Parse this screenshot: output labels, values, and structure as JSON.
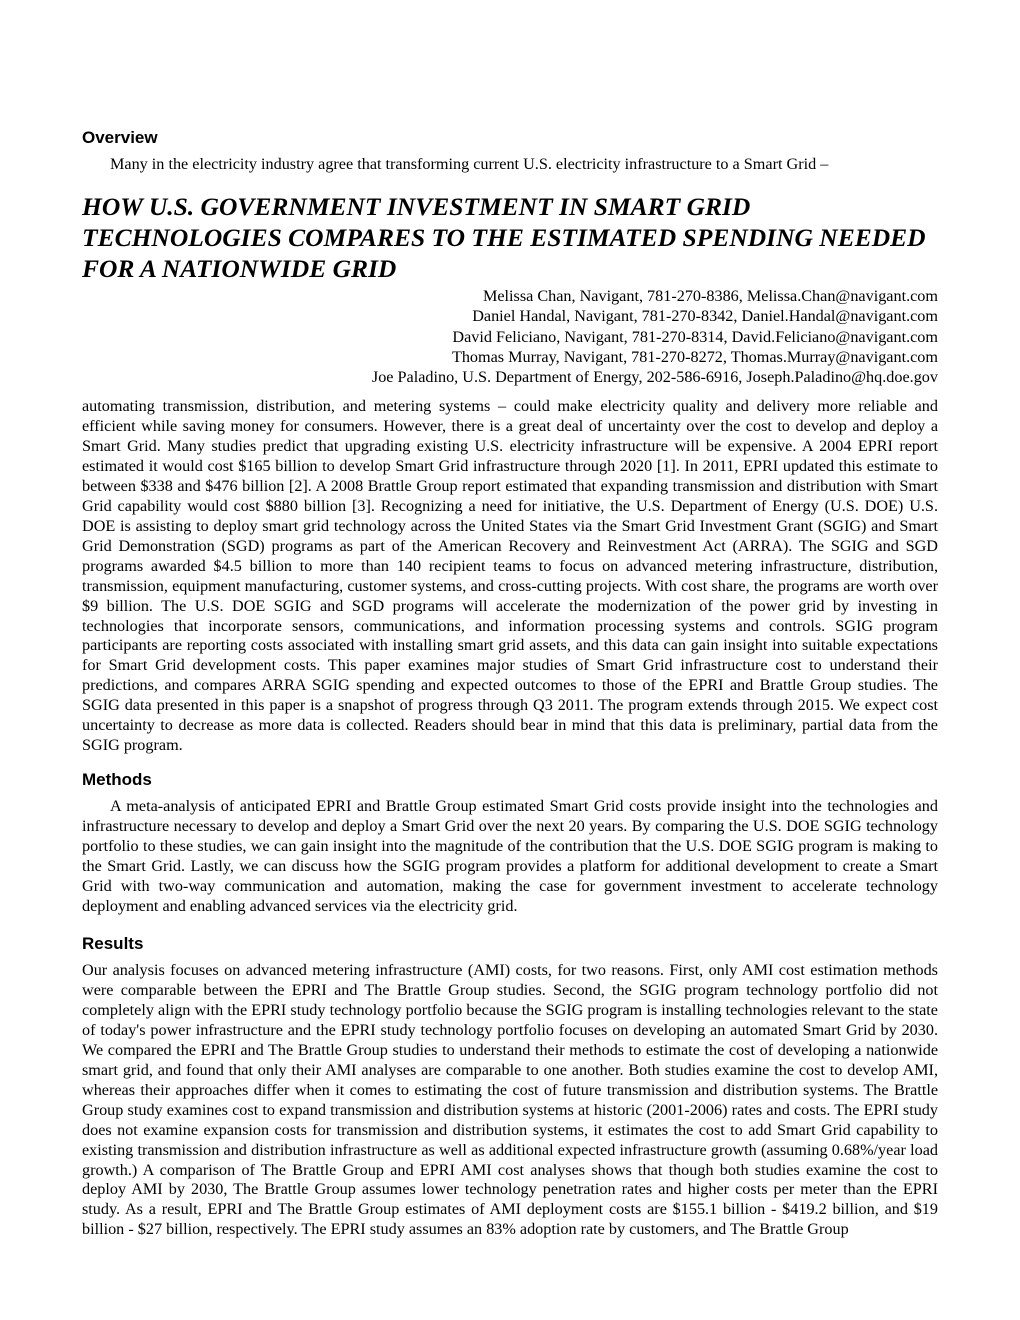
{
  "overview": {
    "heading": "Overview",
    "intro": "Many in the electricity industry agree that transforming current U.S. electricity infrastructure to a Smart Grid –"
  },
  "title": "HOW U.S. GOVERNMENT INVESTMENT IN SMART GRID TECHNOLOGIES COMPARES TO THE ESTIMATED SPENDING NEEDED FOR A NATIONWIDE GRID",
  "authors": [
    "Melissa Chan, Navigant, 781-270-8386, Melissa.Chan@navigant.com",
    "Daniel Handal, Navigant, 781-270-8342, Daniel.Handal@navigant.com",
    "David Feliciano, Navigant, 781-270-8314, David.Feliciano@navigant.com",
    "Thomas Murray, Navigant, 781-270-8272, Thomas.Murray@navigant.com",
    "Joe Paladino, U.S. Department of Energy, 202-586-6916, Joseph.Paladino@hq.doe.gov"
  ],
  "body_main": "automating transmission, distribution, and metering systems – could make electricity quality and delivery more reliable and efficient while saving money for consumers.  However, there is a great deal of uncertainty over the cost to develop and deploy a Smart Grid.  Many studies predict that upgrading existing U.S. electricity infrastructure will be expensive.  A 2004 EPRI report estimated it would cost $165 billion to develop Smart Grid infrastructure through 2020 [1].  In 2011, EPRI updated this estimate to between $338 and $476 billion [2]. A 2008 Brattle Group report estimated that expanding transmission and distribution with Smart Grid capability would cost $880 billion [3]. Recognizing a need for initiative, the U.S. Department of Energy (U.S. DOE) U.S. DOE is assisting to deploy smart grid technology across the United States via the Smart Grid Investment Grant (SGIG) and Smart Grid Demonstration (SGD) programs as part of the American Recovery and Reinvestment Act (ARRA). The SGIG and SGD programs awarded $4.5 billion to more than 140 recipient teams to focus on advanced metering infrastructure, distribution, transmission, equipment manufacturing, customer systems, and cross-cutting projects.  With cost share, the programs are worth over $9 billion. The U.S. DOE SGIG and SGD programs will accelerate the modernization of the power grid by investing in technologies that incorporate sensors, communications, and information processing systems and controls.  SGIG program participants are reporting costs associated with installing smart grid assets, and this data can gain insight into suitable expectations for Smart Grid development costs.   This paper examines major studies of Smart Grid infrastructure cost to understand their predictions, and compares ARRA SGIG spending and expected outcomes to those of the EPRI and Brattle Group studies.  The SGIG data presented in this paper is a snapshot of progress through Q3 2011.  The program extends through 2015.  We expect cost uncertainty to decrease as more data is collected.  Readers should bear in mind that this data is preliminary, partial data from the SGIG program.",
  "methods": {
    "heading": "Methods",
    "text": "A meta-analysis of anticipated EPRI and Brattle Group estimated Smart Grid costs provide insight into the technologies and infrastructure necessary to develop and deploy a Smart Grid over the next 20 years.  By comparing the U.S. DOE SGIG technology portfolio to these studies, we can gain insight into the magnitude of the contribution that the U.S. DOE SGIG program is making to the Smart Grid.  Lastly, we can discuss how the SGIG program provides a platform for additional development to create a Smart Grid with two-way communication and automation, making the case for government investment to accelerate technology deployment and enabling advanced services via the electricity grid."
  },
  "results": {
    "heading": "Results",
    "text": "Our analysis focuses on advanced metering infrastructure (AMI) costs, for two reasons.  First, only AMI cost estimation methods were comparable between the EPRI and The Brattle Group studies.  Second, the SGIG program technology portfolio did not completely align with the EPRI study technology portfolio because the SGIG program is installing technologies relevant to the state of today's power infrastructure and the EPRI study technology portfolio focuses on developing an automated Smart Grid by 2030.  We compared the EPRI and The Brattle Group studies to understand their methods to estimate the cost of developing a nationwide smart grid, and found that only their AMI analyses are comparable to one another.  Both studies examine the cost to develop AMI, whereas their approaches differ when it comes to estimating the cost of future transmission and distribution systems.  The Brattle Group study examines cost to expand transmission and distribution systems at historic (2001-2006) rates and costs.  The EPRI study does not examine expansion costs for transmission and distribution systems, it estimates the cost to add Smart Grid capability to existing transmission and distribution infrastructure as well as additional expected infrastructure growth (assuming 0.68%/year load growth.)  A comparison of The Brattle Group and EPRI AMI cost analyses shows that though both studies examine the cost to deploy AMI by 2030, The Brattle Group assumes lower technology penetration rates and higher costs per meter than the EPRI study.  As a result, EPRI and The Brattle Group estimates of AMI deployment costs are $155.1 billion - $419.2 billion, and $19 billion - $27 billion, respectively. The EPRI study assumes an 83% adoption rate by customers, and The Brattle Group"
  }
}
